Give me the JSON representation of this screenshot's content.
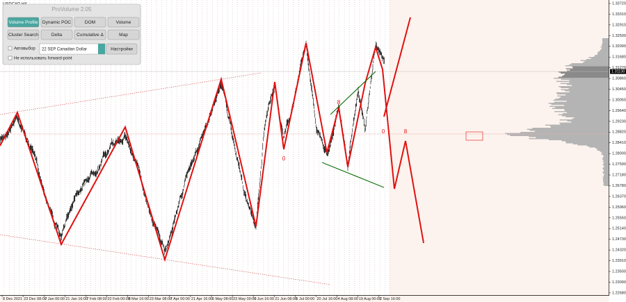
{
  "window": {
    "symbol": "USDCAD,H4"
  },
  "panel": {
    "title": "ProVolume 2.05",
    "buttons": [
      "Volume Profile",
      "Dynamic POC",
      "DOM",
      "Volume",
      "Cluster Search",
      "Delta",
      "Cumulative Δ",
      "Map"
    ],
    "auto_select": "Автовыбор",
    "instrument": "22 SEP Canadian Dollar",
    "settings": "Настройки",
    "forward_point": "Не использовать forward-point"
  },
  "price_axis": {
    "labels": [
      "1.33720",
      "1.33310",
      "1.32910",
      "1.32500",
      "1.32090",
      "1.31680",
      "1.31270",
      "1.30860",
      "1.30450",
      "1.30050",
      "1.29640",
      "1.29230",
      "1.28820",
      "1.28410",
      "1.28000",
      "1.27590",
      "1.27180",
      "1.26780",
      "1.26370",
      "1.25960",
      "1.25550",
      "1.25140",
      "1.24730",
      "1.24320",
      "1.23910",
      "1.23500",
      "1.23090",
      "1.22680"
    ],
    "current": "1.31130"
  },
  "time_axis": {
    "labels": [
      "8 Dec 2021",
      "23 Dec 08:00",
      "7 Jan 00:00",
      "21 Jan 16:00",
      "7 Feb 08:00",
      "22 Feb 00:00",
      "8 Mar 16:00",
      "23 Mar 08:00",
      "7 Apr 00:00",
      "21 Apr 16:00",
      "6 May 08:00",
      "23 May 00:00",
      "6 Jun 16:00",
      "21 Jun 08:00",
      "6 Jul 00:00",
      "20 Jul 16:00",
      "4 Aug 08:00",
      "19 Aug 00:00",
      "2 Sep 16:00"
    ]
  },
  "wave_labels": [
    "0",
    "8",
    "0",
    "8"
  ]
}
